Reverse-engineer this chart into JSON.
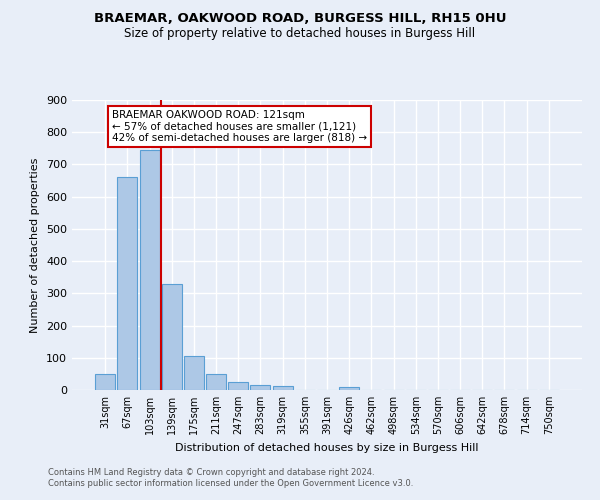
{
  "title1": "BRAEMAR, OAKWOOD ROAD, BURGESS HILL, RH15 0HU",
  "title2": "Size of property relative to detached houses in Burgess Hill",
  "xlabel": "Distribution of detached houses by size in Burgess Hill",
  "ylabel": "Number of detached properties",
  "bar_labels": [
    "31sqm",
    "67sqm",
    "103sqm",
    "139sqm",
    "175sqm",
    "211sqm",
    "247sqm",
    "283sqm",
    "319sqm",
    "355sqm",
    "391sqm",
    "426sqm",
    "462sqm",
    "498sqm",
    "534sqm",
    "570sqm",
    "606sqm",
    "642sqm",
    "678sqm",
    "714sqm",
    "750sqm"
  ],
  "bar_values": [
    50,
    660,
    745,
    330,
    105,
    50,
    25,
    17,
    12,
    0,
    0,
    10,
    0,
    0,
    0,
    0,
    0,
    0,
    0,
    0,
    0
  ],
  "bar_color": "#adc8e6",
  "bar_edge_color": "#5a9fd4",
  "vline_x": 2.5,
  "vline_color": "#cc0000",
  "annotation_title": "BRAEMAR OAKWOOD ROAD: 121sqm",
  "annotation_line1": "← 57% of detached houses are smaller (1,121)",
  "annotation_line2": "42% of semi-detached houses are larger (818) →",
  "annotation_box_color": "#ffffff",
  "annotation_box_edge": "#cc0000",
  "ylim": [
    0,
    900
  ],
  "yticks": [
    0,
    100,
    200,
    300,
    400,
    500,
    600,
    700,
    800,
    900
  ],
  "footer1": "Contains HM Land Registry data © Crown copyright and database right 2024.",
  "footer2": "Contains public sector information licensed under the Open Government Licence v3.0.",
  "bg_color": "#e8eef8",
  "grid_color": "#ffffff"
}
